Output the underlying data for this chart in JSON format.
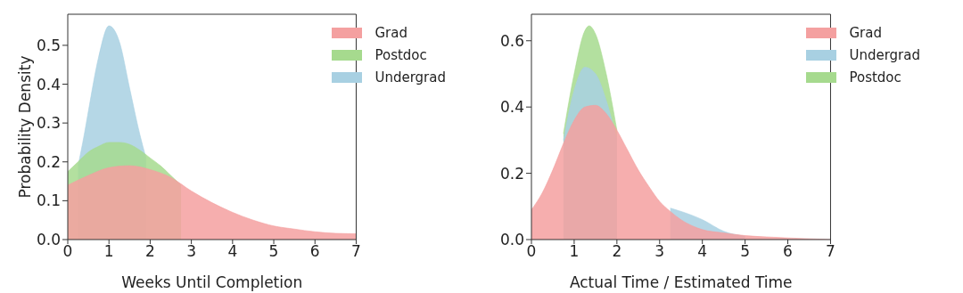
{
  "chart_data": [
    {
      "type": "area",
      "xlabel": "Weeks Until Completion",
      "ylabel": "Probability Density",
      "xlim": [
        0,
        7
      ],
      "xticks": [
        0,
        1,
        2,
        3,
        4,
        5,
        6,
        7
      ],
      "ylim": [
        0,
        0.58
      ],
      "yticks": [
        {
          "value": 0,
          "label": "0.0"
        },
        0.1,
        0.2,
        0.3,
        0.4,
        0.5
      ],
      "legend": "top right",
      "series": [
        {
          "name": "Grad",
          "color": "#f4a0a0",
          "x": [
            0,
            0.5,
            1,
            1.5,
            2,
            2.5,
            3,
            3.5,
            4,
            4.5,
            5,
            5.5,
            6,
            6.5,
            7
          ],
          "values": [
            0.14,
            0.165,
            0.185,
            0.19,
            0.18,
            0.16,
            0.125,
            0.095,
            0.07,
            0.05,
            0.035,
            0.027,
            0.02,
            0.016,
            0.015
          ]
        },
        {
          "name": "Postdoc",
          "color": "#a6da8e",
          "x": [
            0,
            0.25,
            0.5,
            0.75,
            1,
            1.25,
            1.5,
            1.75,
            2,
            2.25,
            2.5,
            2.75
          ],
          "values": [
            0.175,
            0.2,
            0.225,
            0.24,
            0.25,
            0.25,
            0.245,
            0.23,
            0.21,
            0.19,
            0.165,
            0.14
          ]
        },
        {
          "name": "Undergrad",
          "color": "#a8d0e2",
          "x": [
            0.25,
            0.4,
            0.5,
            0.75,
            1,
            1.25,
            1.5,
            1.75,
            1.9
          ],
          "values": [
            0.19,
            0.27,
            0.33,
            0.47,
            0.55,
            0.51,
            0.39,
            0.27,
            0.21
          ]
        }
      ]
    },
    {
      "type": "area",
      "xlabel": "Actual Time / Estimated Time",
      "xlim": [
        0,
        7
      ],
      "xticks": [
        0,
        1,
        2,
        3,
        4,
        5,
        6,
        7
      ],
      "ylim": [
        0,
        0.68
      ],
      "yticks": [
        {
          "value": 0,
          "label": "0.0"
        },
        0.2,
        0.4,
        0.6
      ],
      "legend": "top right",
      "series": [
        {
          "name": "Grad",
          "color": "#f4a0a0",
          "x": [
            0,
            0.25,
            0.5,
            0.75,
            1,
            1.25,
            1.5,
            1.75,
            2,
            2.25,
            2.5,
            2.75,
            3,
            3.25,
            3.5,
            4,
            4.5,
            5,
            5.5,
            6,
            7
          ],
          "values": [
            0.09,
            0.14,
            0.21,
            0.29,
            0.36,
            0.4,
            0.405,
            0.38,
            0.33,
            0.27,
            0.21,
            0.16,
            0.115,
            0.085,
            0.06,
            0.03,
            0.02,
            0.012,
            0.008,
            0.005,
            0.0
          ]
        },
        {
          "name": "Undergrad",
          "color": "#a8d0e2",
          "x": [
            0.75,
            1,
            1.25,
            1.5,
            1.75,
            2,
            2.5,
            3,
            3.25,
            3.5,
            4,
            4.5,
            5
          ],
          "values": [
            0.3,
            0.45,
            0.52,
            0.5,
            0.42,
            0.3,
            null,
            null,
            0.095,
            0.085,
            0.06,
            0.025,
            0.01
          ]
        },
        {
          "name": "Postdoc",
          "color": "#a6da8e",
          "x": [
            0.75,
            1,
            1.25,
            1.35,
            1.5,
            1.75,
            2
          ],
          "values": [
            0.32,
            0.5,
            0.63,
            0.645,
            0.62,
            0.5,
            0.33
          ]
        }
      ]
    }
  ]
}
